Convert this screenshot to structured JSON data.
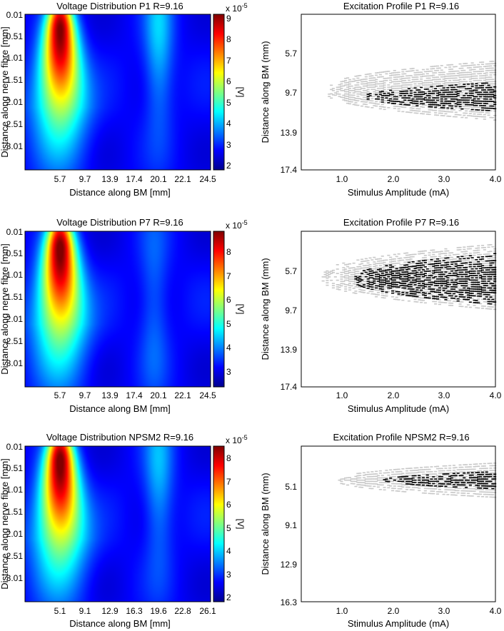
{
  "chart_data": [
    {
      "type": "heatmap",
      "title": "Voltage Distribution P1 R=9.16",
      "xlabel": "Distance along BM [mm]",
      "ylabel": "Distance along nerve fibre [mm]",
      "x_ticks": [
        "5.7",
        "9.7",
        "13.9",
        "17.4",
        "20.1",
        "22.1",
        "24.5"
      ],
      "y_ticks": [
        "0.01",
        "0.51",
        "1.01",
        "1.51",
        "2.01",
        "2.51",
        "3.01"
      ],
      "colorbar": {
        "label": "[V]",
        "exponent": "x 10",
        "exponent_power": "-5",
        "ticks": [
          "2",
          "3",
          "4",
          "5",
          "6",
          "7",
          "8",
          "9"
        ],
        "range": [
          1.7,
          9.1
        ]
      },
      "hotspots": [
        {
          "x": 5.7,
          "y": 0.3,
          "peak": 9.0
        },
        {
          "x": 20.1,
          "y": 0.45,
          "peak": 4.2
        }
      ]
    },
    {
      "type": "heatmap",
      "title": "Excitation Profile P1 R=9.16",
      "xlabel": "Stimulus Amplitude (mA)",
      "ylabel": "Distance along BM (mm)",
      "x_ticks": [
        "1.0",
        "2.0",
        "3.0",
        "4.0"
      ],
      "y_ticks": [
        "5.7",
        "9.7",
        "13.9",
        "17.4"
      ],
      "xlim": [
        0.2,
        4.0
      ],
      "ylim": [
        2.2,
        17.4
      ],
      "gray_region": {
        "x_start": 0.7,
        "y_center": 9.6,
        "half_width_start": 0.5,
        "half_width_end": 3.0
      },
      "black_region": {
        "x_start": 1.4,
        "y_center": 10.2,
        "half_width_start": 0.1,
        "half_width_end": 1.5
      }
    },
    {
      "type": "heatmap",
      "title": "Voltage Distribution P7 R=9.16",
      "xlabel": "Distance along BM [mm]",
      "ylabel": "Distance along nerve fibre [mm]",
      "x_ticks": [
        "5.7",
        "9.7",
        "13.9",
        "17.4",
        "20.1",
        "22.1",
        "24.5"
      ],
      "y_ticks": [
        "0.01",
        "0.51",
        "1.01",
        "1.51",
        "2.01",
        "2.51",
        "3.01"
      ],
      "colorbar": {
        "label": "[V]",
        "exponent": "x 10",
        "exponent_power": "-5",
        "ticks": [
          "3",
          "4",
          "5",
          "6",
          "7",
          "8"
        ],
        "range": [
          2.3,
          8.8
        ]
      },
      "hotspots": [
        {
          "x": 5.7,
          "y": 0.35,
          "peak": 8.8
        },
        {
          "x": 19.6,
          "y": 1.6,
          "peak": 3.9
        }
      ]
    },
    {
      "type": "heatmap",
      "title": "Excitation Profile P7 R=9.16",
      "xlabel": "Stimulus Amplitude (mA)",
      "ylabel": "Distance along BM (mm)",
      "x_ticks": [
        "1.0",
        "2.0",
        "3.0",
        "4.0"
      ],
      "y_ticks": [
        "5.7",
        "9.7",
        "13.9",
        "17.4"
      ],
      "xlim": [
        0.2,
        4.0
      ],
      "ylim": [
        2.2,
        17.4
      ],
      "gray_region": {
        "x_start": 0.6,
        "y_center": 6.6,
        "half_width_start": 0.5,
        "half_width_end": 3.3
      },
      "black_region": {
        "x_start": 1.2,
        "y_center": 6.8,
        "half_width_start": 0.3,
        "half_width_end": 2.6
      }
    },
    {
      "type": "heatmap",
      "title": "Voltage Distribution NPSM2 R=9.16",
      "xlabel": "Distance along BM [mm]",
      "ylabel": "Distance along nerve fibre [mm]",
      "x_ticks": [
        "5.1",
        "9.1",
        "12.9",
        "16.3",
        "19.6",
        "22.8",
        "26.1"
      ],
      "y_ticks": [
        "0.01",
        "0.51",
        "1.01",
        "1.51",
        "2.01",
        "2.51",
        "3.01"
      ],
      "colorbar": {
        "label": "[V]",
        "exponent": "x 10",
        "exponent_power": "-5",
        "ticks": [
          "2",
          "3",
          "4",
          "5",
          "6",
          "7",
          "8"
        ],
        "range": [
          1.7,
          8.4
        ]
      },
      "hotspots": [
        {
          "x": 5.1,
          "y": 0.3,
          "peak": 8.4
        },
        {
          "x": 19.6,
          "y": 0.6,
          "peak": 3.8
        }
      ]
    },
    {
      "type": "heatmap",
      "title": "Excitation Profile NPSM2 R=9.16",
      "xlabel": "Stimulus Amplitude (mA)",
      "ylabel": "Distance along BM (mm)",
      "x_ticks": [
        "1.0",
        "2.0",
        "3.0",
        "4.0"
      ],
      "y_ticks": [
        "5.1",
        "9.1",
        "12.9",
        "16.3"
      ],
      "xlim": [
        0.2,
        4.0
      ],
      "ylim": [
        1.9,
        16.3
      ],
      "gray_region": {
        "x_start": 0.9,
        "y_center": 5.0,
        "half_width_start": 0.2,
        "half_width_end": 1.7
      },
      "black_region": {
        "x_start": 1.8,
        "y_center": 5.0,
        "half_width_start": 0.1,
        "half_width_end": 0.9
      }
    }
  ]
}
